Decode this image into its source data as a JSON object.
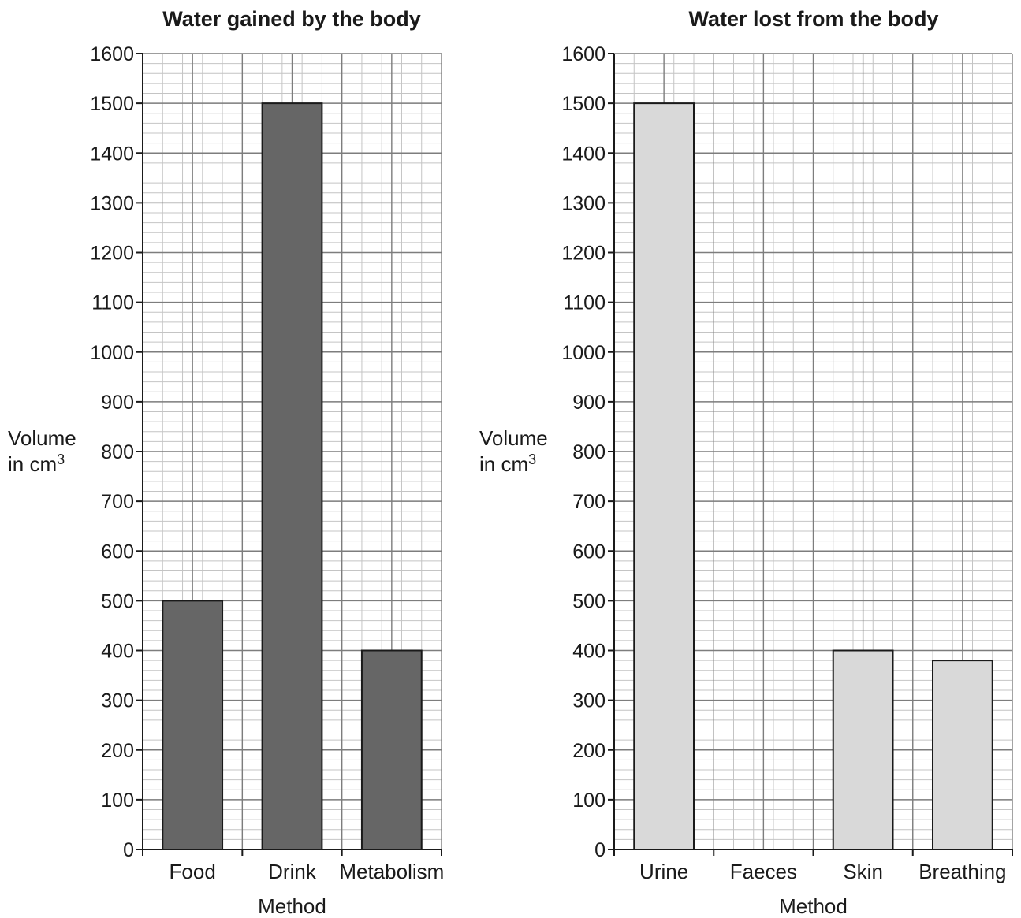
{
  "chart_data": [
    {
      "type": "bar",
      "title": "Water gained by the body",
      "xlabel": "Method",
      "ylabel_line1": "Volume",
      "ylabel_line2": "in cm",
      "ylabel_superscript": "3",
      "categories": [
        "Food",
        "Drink",
        "Metabolism"
      ],
      "values": [
        500,
        1500,
        400
      ],
      "ylim": [
        0,
        1600
      ],
      "yticks": [
        0,
        100,
        200,
        300,
        400,
        500,
        600,
        700,
        800,
        900,
        1000,
        1100,
        1200,
        1300,
        1400,
        1500,
        1600
      ],
      "bar_color": "#666666",
      "grid": true
    },
    {
      "type": "bar",
      "title": "Water lost from the body",
      "xlabel": "Method",
      "ylabel_line1": "Volume",
      "ylabel_line2": "in cm",
      "ylabel_superscript": "3",
      "categories": [
        "Urine",
        "Faeces",
        "Skin",
        "Breathing"
      ],
      "values": [
        1500,
        null,
        400,
        380
      ],
      "ylim": [
        0,
        1600
      ],
      "yticks": [
        0,
        100,
        200,
        300,
        400,
        500,
        600,
        700,
        800,
        900,
        1000,
        1100,
        1200,
        1300,
        1400,
        1500,
        1600
      ],
      "bar_color": "#d9d9d9",
      "grid": true
    }
  ]
}
